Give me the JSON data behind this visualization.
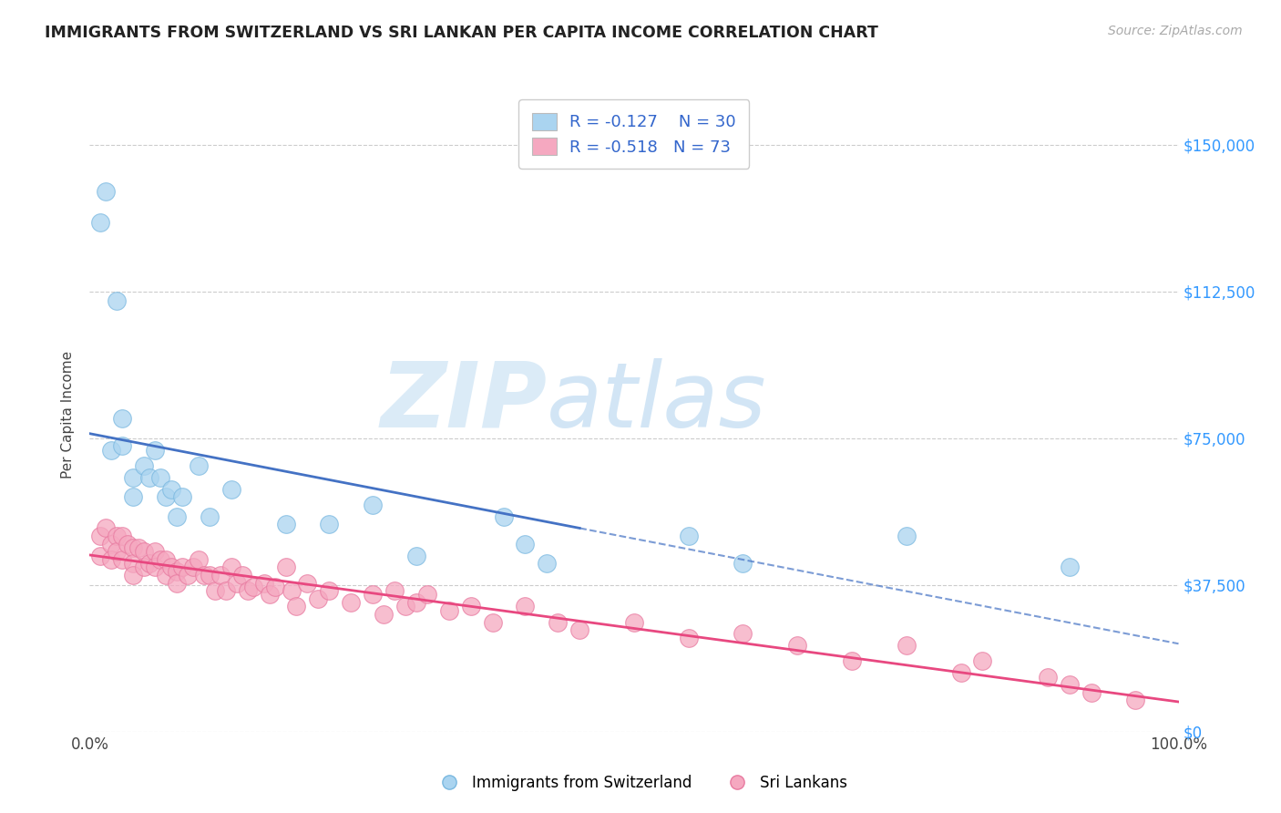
{
  "title": "IMMIGRANTS FROM SWITZERLAND VS SRI LANKAN PER CAPITA INCOME CORRELATION CHART",
  "source": "Source: ZipAtlas.com",
  "ylabel": "Per Capita Income",
  "bg_color": "#ffffff",
  "grid_color": "#cccccc",
  "watermark_zip": "ZIP",
  "watermark_atlas": "atlas",
  "ytick_labels": [
    "$0",
    "$37,500",
    "$75,000",
    "$112,500",
    "$150,000"
  ],
  "ytick_values": [
    0,
    37500,
    75000,
    112500,
    150000
  ],
  "xlim": [
    0,
    1.0
  ],
  "ylim": [
    0,
    162000
  ],
  "xtick_labels": [
    "0.0%",
    "100.0%"
  ],
  "xtick_values": [
    0.0,
    1.0
  ],
  "swiss_color": "#aad4f0",
  "swiss_edge_color": "#7ab8e0",
  "sri_color": "#f5a8c0",
  "sri_edge_color": "#e87aa0",
  "line_swiss_color": "#4472c4",
  "line_sri_color": "#e84880",
  "R_swiss": -0.127,
  "N_swiss": 30,
  "R_sri": -0.518,
  "N_sri": 73,
  "swiss_x": [
    0.01,
    0.015,
    0.02,
    0.025,
    0.03,
    0.03,
    0.04,
    0.04,
    0.05,
    0.055,
    0.06,
    0.065,
    0.07,
    0.075,
    0.08,
    0.085,
    0.1,
    0.11,
    0.13,
    0.18,
    0.22,
    0.26,
    0.3,
    0.38,
    0.4,
    0.42,
    0.55,
    0.6,
    0.75,
    0.9
  ],
  "swiss_y": [
    130000,
    138000,
    72000,
    110000,
    73000,
    80000,
    65000,
    60000,
    68000,
    65000,
    72000,
    65000,
    60000,
    62000,
    55000,
    60000,
    68000,
    55000,
    62000,
    53000,
    53000,
    58000,
    45000,
    55000,
    48000,
    43000,
    50000,
    43000,
    50000,
    42000
  ],
  "sri_x": [
    0.01,
    0.01,
    0.015,
    0.02,
    0.02,
    0.025,
    0.025,
    0.03,
    0.03,
    0.035,
    0.04,
    0.04,
    0.04,
    0.045,
    0.05,
    0.05,
    0.055,
    0.06,
    0.06,
    0.065,
    0.07,
    0.07,
    0.075,
    0.08,
    0.08,
    0.085,
    0.09,
    0.095,
    0.1,
    0.105,
    0.11,
    0.115,
    0.12,
    0.125,
    0.13,
    0.135,
    0.14,
    0.145,
    0.15,
    0.16,
    0.165,
    0.17,
    0.18,
    0.185,
    0.19,
    0.2,
    0.21,
    0.22,
    0.24,
    0.26,
    0.27,
    0.28,
    0.29,
    0.3,
    0.31,
    0.33,
    0.35,
    0.37,
    0.4,
    0.43,
    0.45,
    0.5,
    0.55,
    0.6,
    0.65,
    0.7,
    0.75,
    0.8,
    0.82,
    0.88,
    0.9,
    0.92,
    0.96
  ],
  "sri_y": [
    50000,
    45000,
    52000,
    48000,
    44000,
    50000,
    46000,
    50000,
    44000,
    48000,
    47000,
    43000,
    40000,
    47000,
    46000,
    42000,
    43000,
    46000,
    42000,
    44000,
    44000,
    40000,
    42000,
    41000,
    38000,
    42000,
    40000,
    42000,
    44000,
    40000,
    40000,
    36000,
    40000,
    36000,
    42000,
    38000,
    40000,
    36000,
    37000,
    38000,
    35000,
    37000,
    42000,
    36000,
    32000,
    38000,
    34000,
    36000,
    33000,
    35000,
    30000,
    36000,
    32000,
    33000,
    35000,
    31000,
    32000,
    28000,
    32000,
    28000,
    26000,
    28000,
    24000,
    25000,
    22000,
    18000,
    22000,
    15000,
    18000,
    14000,
    12000,
    10000,
    8000
  ]
}
